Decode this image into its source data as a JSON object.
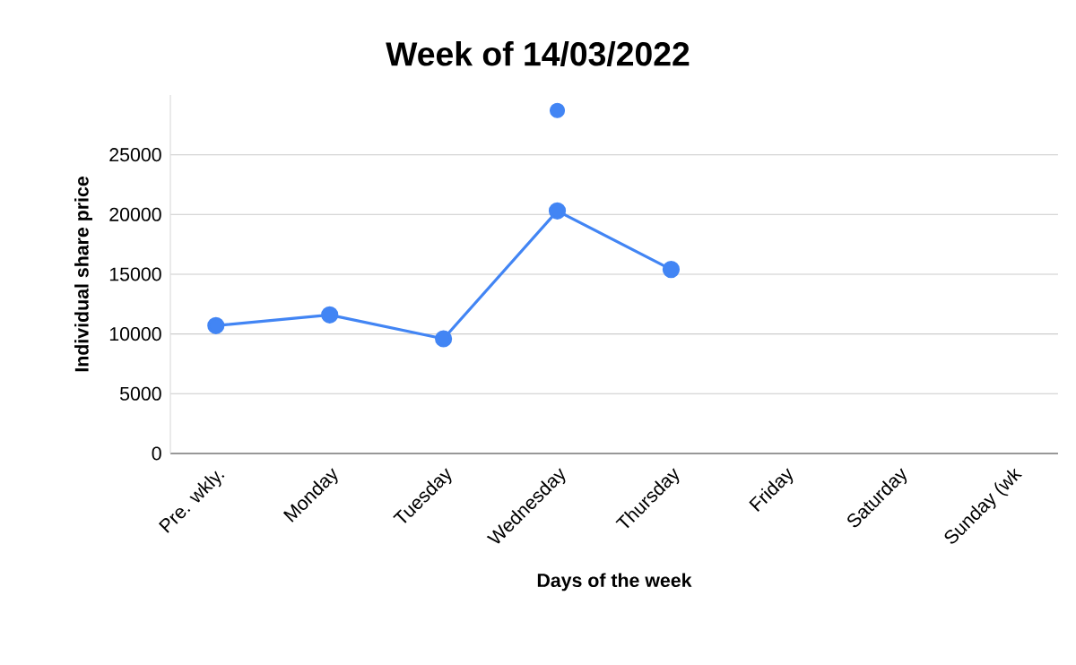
{
  "chart_data": {
    "type": "line",
    "title": "Week of 14/03/2022",
    "xlabel": "Days of the week",
    "ylabel": "Individual share price",
    "categories": [
      "Pre. wkly.",
      "Monday",
      "Tuesday",
      "Wednesday",
      "Thursday",
      "Friday",
      "Saturday",
      "Sunday (wk"
    ],
    "series": [
      {
        "color": "#4285f4",
        "values": [
          10700,
          11600,
          9600,
          20300,
          15400,
          null,
          null,
          null
        ]
      },
      {
        "type": "scatter",
        "color": "#4285f4",
        "values": [
          null,
          null,
          null,
          28700,
          null,
          null,
          null,
          null
        ]
      }
    ],
    "ylim": [
      0,
      30000
    ],
    "yticks": [
      0,
      5000,
      10000,
      15000,
      20000,
      25000
    ],
    "grid": "y",
    "marker": "circle",
    "legend": false
  }
}
